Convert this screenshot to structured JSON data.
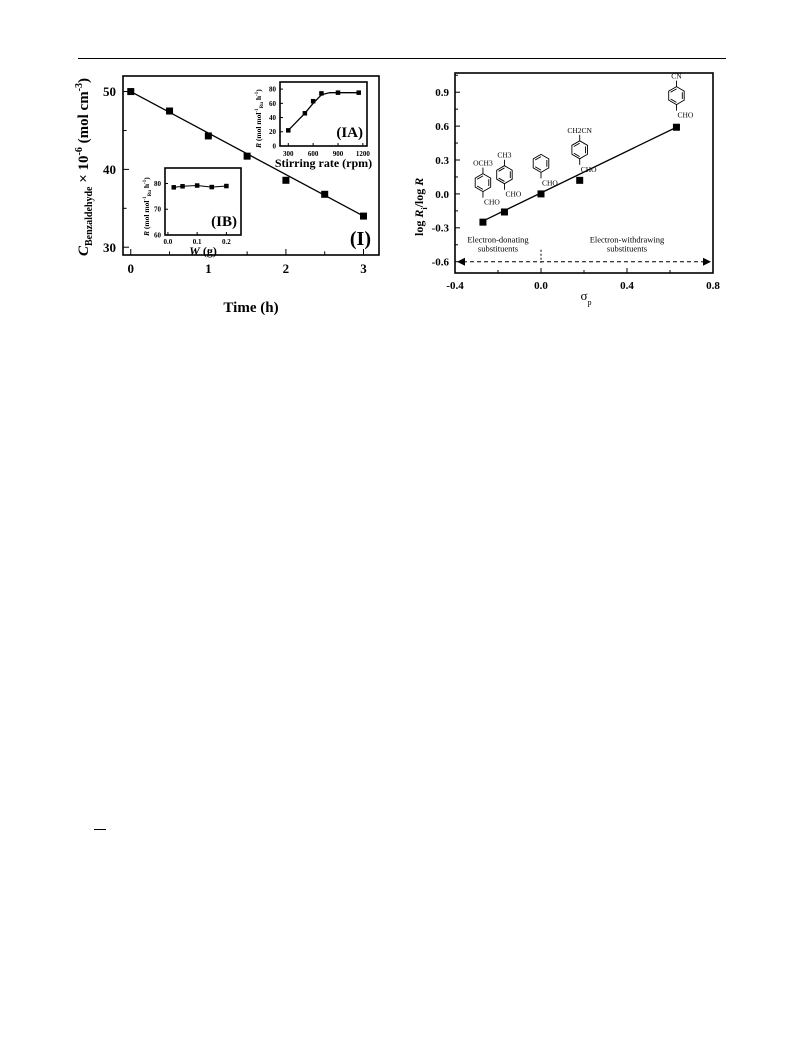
{
  "chart_data": [
    {
      "id": "I",
      "type": "scatter",
      "panel_label": "(I)",
      "xlabel": "Time (h)",
      "ylabel_var": "C",
      "ylabel_sub": "Benzaldehyde",
      "ylabel_rest": " × 10",
      "ylabel_exp": "-6",
      "ylabel_unit": " (mol cm",
      "ylabel_unit_exp": "-3",
      "ylabel_close": ")",
      "xlim": [
        -0.1,
        3.2
      ],
      "ylim": [
        29,
        52
      ],
      "xticks": [
        0,
        1,
        2,
        3
      ],
      "yticks": [
        30,
        40,
        50
      ],
      "x": [
        0,
        0.5,
        1.0,
        1.5,
        2.0,
        2.5,
        3.0
      ],
      "y": [
        50.0,
        47.5,
        44.3,
        41.7,
        38.6,
        36.8,
        34.0
      ],
      "fit_line": [
        [
          0,
          50.0
        ],
        [
          3.0,
          34.0
        ]
      ]
    },
    {
      "id": "IA",
      "type": "scatter",
      "panel_label": "(IA)",
      "xlabel": "Stirring rate (rpm)",
      "ylabel_var": "R",
      "ylabel_unit": " (mol mol",
      "ylabel_unit_exp": "-1",
      "ylabel_unit_sub": "Ru",
      "ylabel_unit_rest": " h",
      "ylabel_unit_exp2": "-1",
      "ylabel_close": ")",
      "xlim": [
        200,
        1250
      ],
      "ylim": [
        0,
        90
      ],
      "xticks": [
        300,
        600,
        900,
        1200
      ],
      "yticks": [
        0,
        20,
        40,
        60,
        80
      ],
      "x": [
        300,
        500,
        600,
        700,
        900,
        1150
      ],
      "y": [
        22,
        46,
        63,
        74,
        75,
        75
      ],
      "fit_curve": [
        [
          300,
          22
        ],
        [
          500,
          46
        ],
        [
          600,
          60
        ],
        [
          700,
          72
        ],
        [
          800,
          75
        ],
        [
          1150,
          75
        ]
      ]
    },
    {
      "id": "IB",
      "type": "scatter",
      "panel_label": "(IB)",
      "xlabel_var": "W",
      "xlabel_unit": " (g)",
      "ylabel_var": "R",
      "ylabel_unit": " (mol mol",
      "ylabel_unit_exp": "-1",
      "ylabel_unit_sub": "Ru",
      "ylabel_unit_rest": " h",
      "ylabel_unit_exp2": "-1",
      "ylabel_close": ")",
      "xlim": [
        -0.01,
        0.25
      ],
      "ylim": [
        60,
        86
      ],
      "xticks": [
        0.0,
        0.1,
        0.2
      ],
      "xtick_labels": [
        "0.0",
        "0.1",
        "0.2"
      ],
      "yticks": [
        60,
        70,
        80
      ],
      "x": [
        0.02,
        0.05,
        0.1,
        0.15,
        0.2
      ],
      "y": [
        78.5,
        78.9,
        79.2,
        78.6,
        79.0
      ]
    },
    {
      "id": "hammett",
      "type": "scatter",
      "xlabel_var": "σ",
      "xlabel_sub": "p",
      "ylabel": "log R",
      "ylabel_sub": "i",
      "ylabel_rest": "/log R",
      "xlim": [
        -0.4,
        0.8
      ],
      "ylim": [
        -0.7,
        1.07
      ],
      "xticks": [
        -0.4,
        0.0,
        0.4,
        0.8
      ],
      "xtick_labels": [
        "-0.4",
        "0.0",
        "0.4",
        "0.8"
      ],
      "yticks": [
        -0.6,
        -0.3,
        0.0,
        0.3,
        0.6,
        0.9
      ],
      "ytick_labels": [
        "-0.6",
        "-0.3",
        "0.0",
        "0.3",
        "0.6",
        "0.9"
      ],
      "x": [
        -0.27,
        -0.17,
        0.0,
        0.18,
        0.63
      ],
      "y": [
        -0.25,
        -0.16,
        0.0,
        0.12,
        0.59
      ],
      "fit_line": [
        [
          -0.27,
          -0.24
        ],
        [
          0.63,
          0.59
        ]
      ],
      "arrow_y": -0.6,
      "divider_x": 0.0,
      "region_left": [
        "Electron-donating",
        "substituents"
      ],
      "region_right": [
        "Electron-withdrawing",
        "substituents"
      ],
      "molecules": [
        {
          "x": -0.27,
          "y": 0.1,
          "top": "OCH3",
          "bottom": "CHO"
        },
        {
          "x": -0.17,
          "y": 0.17,
          "top": "CH3",
          "bottom": "CHO"
        },
        {
          "x": 0.0,
          "y": 0.27,
          "top": "",
          "bottom": "CHO"
        },
        {
          "x": 0.18,
          "y": 0.39,
          "top": "CH2CN",
          "bottom": "CHO"
        },
        {
          "x": 0.63,
          "y": 0.87,
          "top": "CN",
          "bottom": "CHO"
        }
      ]
    }
  ]
}
